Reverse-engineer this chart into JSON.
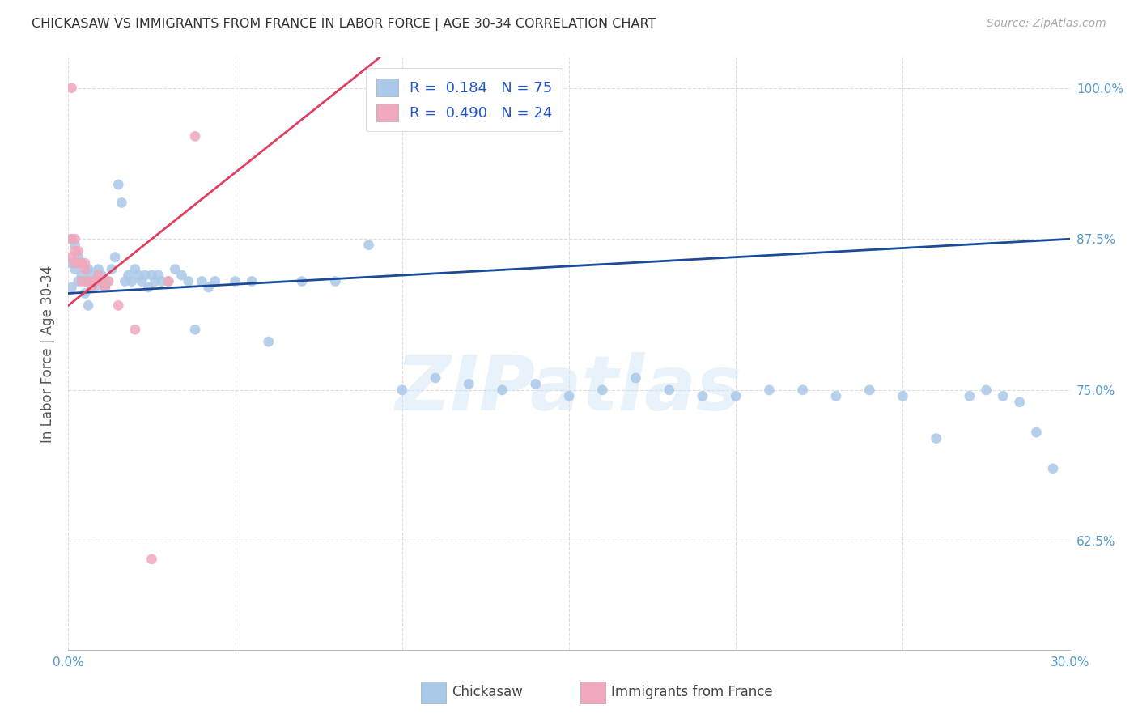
{
  "title": "CHICKASAW VS IMMIGRANTS FROM FRANCE IN LABOR FORCE | AGE 30-34 CORRELATION CHART",
  "source": "Source: ZipAtlas.com",
  "ylabel": "In Labor Force | Age 30-34",
  "legend_label_blue": "Chickasaw",
  "legend_label_pink": "Immigrants from France",
  "R_chickasaw": 0.184,
  "N_chickasaw": 75,
  "R_france": 0.49,
  "N_france": 24,
  "xlim": [
    0.0,
    0.3
  ],
  "ylim": [
    0.535,
    1.025
  ],
  "yticks": [
    0.625,
    0.75,
    0.875,
    1.0
  ],
  "ytick_labels": [
    "62.5%",
    "75.0%",
    "87.5%",
    "100.0%"
  ],
  "xtick_vals": [
    0.0,
    0.05,
    0.1,
    0.15,
    0.2,
    0.25,
    0.3
  ],
  "xtick_labels": [
    "0.0%",
    "",
    "",
    "",
    "",
    "",
    "30.0%"
  ],
  "blue_scatter_color": "#aac8e8",
  "pink_scatter_color": "#f0a8bc",
  "blue_line_color": "#1a4a99",
  "pink_line_color": "#e04060",
  "background_color": "#ffffff",
  "grid_color": "#dddddd",
  "watermark_text": "ZIPatlas",
  "title_fontsize": 11.5,
  "axis_tick_color": "#5599cc",
  "ylabel_color": "#555555",
  "title_color": "#333333",
  "blue_intercept": 0.83,
  "blue_slope": 0.15,
  "pink_intercept": 0.82,
  "pink_slope": 2.2,
  "chickasaw_x": [
    0.001,
    0.001,
    0.001,
    0.002,
    0.002,
    0.003,
    0.003,
    0.004,
    0.004,
    0.005,
    0.005,
    0.006,
    0.006,
    0.007,
    0.007,
    0.008,
    0.008,
    0.009,
    0.01,
    0.01,
    0.011,
    0.012,
    0.013,
    0.014,
    0.015,
    0.016,
    0.017,
    0.018,
    0.019,
    0.02,
    0.021,
    0.022,
    0.023,
    0.024,
    0.025,
    0.026,
    0.027,
    0.028,
    0.03,
    0.032,
    0.034,
    0.036,
    0.038,
    0.04,
    0.042,
    0.044,
    0.05,
    0.055,
    0.06,
    0.07,
    0.08,
    0.09,
    0.1,
    0.11,
    0.12,
    0.13,
    0.14,
    0.15,
    0.16,
    0.17,
    0.18,
    0.19,
    0.2,
    0.21,
    0.22,
    0.23,
    0.24,
    0.25,
    0.26,
    0.27,
    0.275,
    0.28,
    0.285,
    0.29,
    0.295
  ],
  "chickasaw_y": [
    0.875,
    0.855,
    0.835,
    0.87,
    0.85,
    0.86,
    0.84,
    0.845,
    0.855,
    0.84,
    0.83,
    0.85,
    0.82,
    0.835,
    0.845,
    0.84,
    0.835,
    0.85,
    0.84,
    0.845,
    0.835,
    0.84,
    0.85,
    0.86,
    0.92,
    0.905,
    0.84,
    0.845,
    0.84,
    0.85,
    0.845,
    0.84,
    0.845,
    0.835,
    0.845,
    0.84,
    0.845,
    0.84,
    0.84,
    0.85,
    0.845,
    0.84,
    0.8,
    0.84,
    0.835,
    0.84,
    0.84,
    0.84,
    0.79,
    0.84,
    0.84,
    0.87,
    0.75,
    0.76,
    0.755,
    0.75,
    0.755,
    0.745,
    0.75,
    0.76,
    0.75,
    0.745,
    0.745,
    0.75,
    0.75,
    0.745,
    0.75,
    0.745,
    0.71,
    0.745,
    0.75,
    0.745,
    0.74,
    0.715,
    0.685
  ],
  "france_x": [
    0.001,
    0.001,
    0.001,
    0.002,
    0.002,
    0.002,
    0.003,
    0.003,
    0.004,
    0.004,
    0.005,
    0.005,
    0.006,
    0.007,
    0.008,
    0.009,
    0.01,
    0.011,
    0.012,
    0.015,
    0.02,
    0.025,
    0.03,
    0.038
  ],
  "france_y": [
    1.0,
    0.875,
    0.86,
    0.875,
    0.865,
    0.855,
    0.865,
    0.855,
    0.855,
    0.84,
    0.855,
    0.85,
    0.84,
    0.835,
    0.84,
    0.845,
    0.84,
    0.835,
    0.84,
    0.82,
    0.8,
    0.61,
    0.84,
    0.96
  ]
}
